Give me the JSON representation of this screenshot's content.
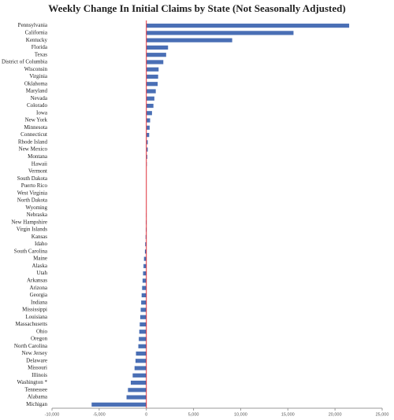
{
  "chart_data": {
    "type": "bar",
    "orientation": "horizontal",
    "title": "Weekly Change In Initial Claims by State (Not Seasonally Adjusted)",
    "categories": [
      "Pennsylvania",
      "California",
      "Kentucky",
      "Florida",
      "Texas",
      "District of Columbia",
      "Wisconsin",
      "Virginia",
      "Oklahoma",
      "Maryland",
      "Nevada",
      "Colorado",
      "Iowa",
      "New York",
      "Minnesota",
      "Connecticut",
      "Rhode Island",
      "New Mexico",
      "Montana",
      "Hawaii",
      "Vermont",
      "South Dakota",
      "Puerto Rico",
      "West Virginia",
      "North Dakota",
      "Wyoming",
      "Nebraska",
      "New Hampshire",
      "Virgin Islands",
      "Kansas",
      "Idaho",
      "South Carolina",
      "Maine",
      "Alaska",
      "Utah",
      "Arkansas",
      "Arizona",
      "Georgia",
      "Indiana",
      "Mississippi",
      "Louisiana",
      "Massachusetts",
      "Ohio",
      "Oregon",
      "North Carolina",
      "New Jersey",
      "Delaware",
      "Missouri",
      "Illinois",
      "Washington *",
      "Tennessee",
      "Alabama",
      "Michigan"
    ],
    "values": [
      21500,
      15600,
      9100,
      2300,
      2100,
      1800,
      1300,
      1250,
      1200,
      1000,
      850,
      750,
      600,
      400,
      350,
      300,
      150,
      150,
      100,
      50,
      20,
      10,
      5,
      0,
      -10,
      -20,
      -30,
      -50,
      -60,
      -80,
      -120,
      -150,
      -250,
      -300,
      -350,
      -400,
      -450,
      -500,
      -550,
      -600,
      -650,
      -700,
      -750,
      -800,
      -850,
      -1100,
      -1150,
      -1250,
      -1450,
      -1650,
      -1950,
      -2100,
      -5800
    ],
    "color": "#4a6fb5",
    "zero_line_color": "#e0303a",
    "xlim": [
      -10000,
      25000
    ],
    "xticks": [
      {
        "value": -10000,
        "label": "-10,000"
      },
      {
        "value": -5000,
        "label": "-5,000"
      },
      0,
      {
        "value": 5000,
        "label": "5,000"
      },
      {
        "value": 10000,
        "label": "10,000"
      },
      {
        "value": 15000,
        "label": "15,000"
      },
      {
        "value": 20000,
        "label": "20,000"
      },
      {
        "value": 25000,
        "label": "25,000"
      }
    ]
  }
}
